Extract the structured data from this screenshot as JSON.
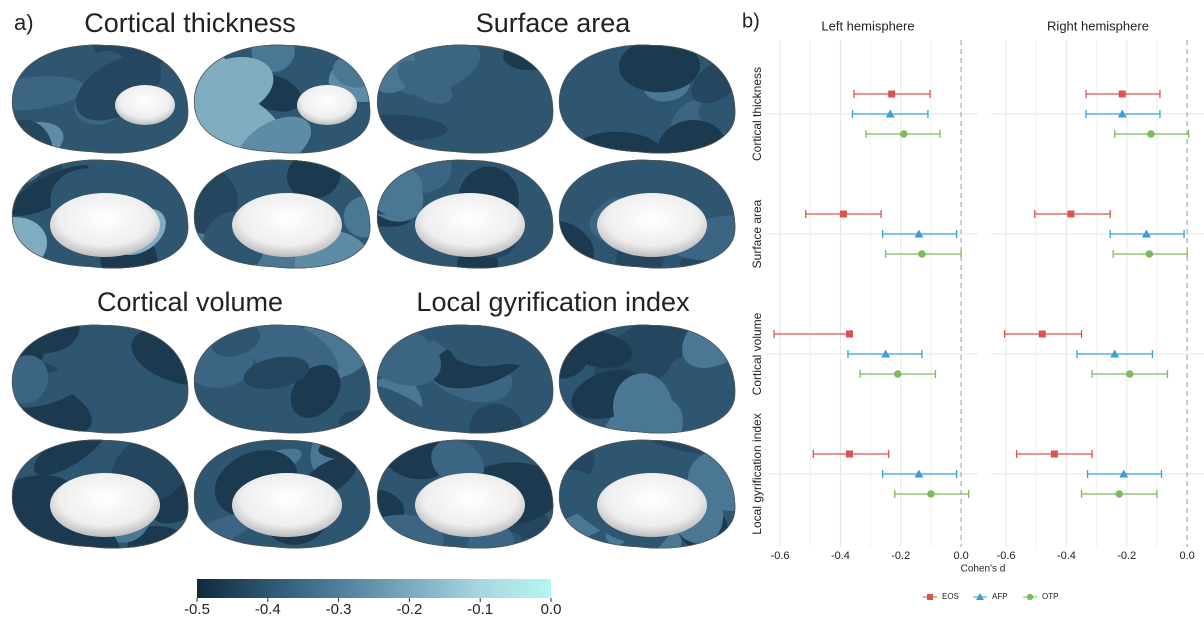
{
  "panel_a": {
    "label": "a)",
    "titles": [
      "Cortical thickness",
      "Surface area",
      "Cortical volume",
      "Local gyrification index"
    ],
    "colorbar": {
      "lim": [
        -0.5,
        0.0
      ],
      "ticks": [
        -0.5,
        -0.4,
        -0.3,
        -0.2,
        -0.1,
        {
          "value": 0,
          "label": "0.0"
        }
      ],
      "colors": [
        "#102a3c",
        "#2d5671",
        "#4f7e9b",
        "#7aa9bf",
        "#a9d6df",
        "#b4f6f0"
      ]
    }
  },
  "chart_data": {
    "type": "forest",
    "label": "b)",
    "xlabel": "Cohen's d",
    "facets": [
      "Left hemisphere",
      "Right hemisphere"
    ],
    "rows": [
      "Cortical thickness",
      "Surface area",
      "Cortical volume",
      "Local gyrification index"
    ],
    "xlim": [
      -0.65,
      0.056
    ],
    "xticks": [
      -0.6,
      -0.4,
      -0.2,
      {
        "value": 0,
        "label": "0.0"
      }
    ],
    "grid": true,
    "legend": "bottom",
    "series": [
      {
        "name": "EOS",
        "color": "#d9534f",
        "marker": "square",
        "estimates": [
          [
            -0.23,
            -0.39,
            -0.37,
            -0.37
          ],
          [
            -0.215,
            -0.385,
            -0.48,
            -0.44
          ]
        ],
        "lower": [
          [
            -0.355,
            -0.515,
            -0.62,
            -0.49
          ],
          [
            -0.335,
            -0.505,
            -0.605,
            -0.565
          ]
        ],
        "upper": [
          [
            -0.103,
            -0.265,
            -0.365,
            -0.24
          ],
          [
            -0.09,
            -0.255,
            -0.35,
            -0.315
          ]
        ]
      },
      {
        "name": "AFP",
        "color": "#3a9fd6",
        "marker": "triangle",
        "estimates": [
          [
            -0.235,
            -0.14,
            -0.25,
            -0.14
          ],
          [
            -0.215,
            -0.135,
            -0.24,
            -0.21
          ]
        ],
        "lower": [
          [
            -0.36,
            -0.26,
            -0.375,
            -0.26
          ],
          [
            -0.335,
            -0.255,
            -0.365,
            -0.33
          ]
        ],
        "upper": [
          [
            -0.11,
            -0.015,
            -0.13,
            -0.015
          ],
          [
            -0.09,
            -0.01,
            -0.115,
            -0.085
          ]
        ]
      },
      {
        "name": "OTP",
        "color": "#7dbb5e",
        "marker": "circle",
        "estimates": [
          [
            -0.19,
            -0.13,
            -0.21,
            -0.1
          ],
          [
            -0.12,
            -0.125,
            -0.19,
            -0.225
          ]
        ],
        "lower": [
          [
            -0.315,
            -0.25,
            -0.335,
            -0.22
          ],
          [
            -0.24,
            -0.245,
            -0.315,
            -0.35
          ]
        ],
        "upper": [
          [
            -0.07,
            0.0,
            -0.085,
            0.025
          ],
          [
            0.005,
            0.0,
            -0.065,
            -0.1
          ]
        ]
      }
    ]
  }
}
